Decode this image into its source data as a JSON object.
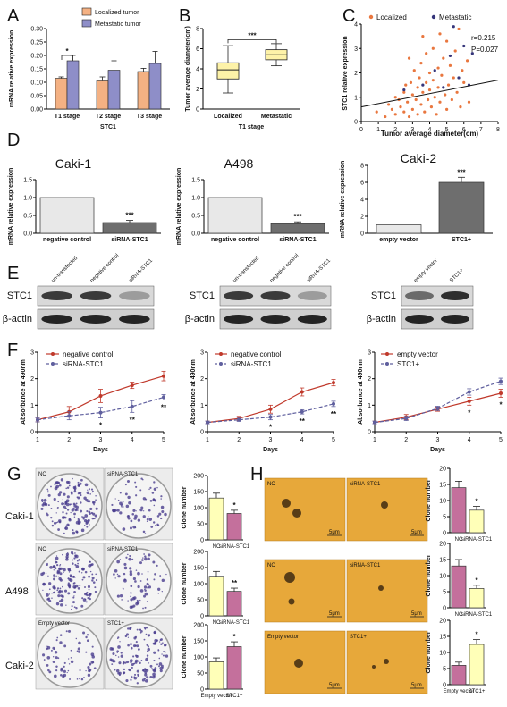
{
  "panels": {
    "A": "A",
    "B": "B",
    "C": "C",
    "D": "D",
    "E": "E",
    "F": "F",
    "G": "G",
    "H": "H"
  },
  "chart_data": [
    {
      "id": "A",
      "type": "bar",
      "categories": [
        "T1 stage",
        "T2 stage",
        "T3 stage"
      ],
      "series": [
        {
          "name": "Localized tumor",
          "color": "#f4b183",
          "values": [
            0.115,
            0.105,
            0.14
          ],
          "err": [
            0.005,
            0.015,
            0.012
          ]
        },
        {
          "name": "Metastatic tumor",
          "color": "#8e8ec8",
          "values": [
            0.18,
            0.145,
            0.17
          ],
          "err": [
            0.02,
            0.035,
            0.045
          ]
        }
      ],
      "xlabel": "STC1",
      "ylabel": "mRNA relative expression",
      "ylim": [
        0,
        0.3
      ],
      "yticks": [
        "0.00",
        "0.05",
        "0.10",
        "0.15",
        "0.20",
        "0.25",
        "0.30"
      ],
      "annotations": [
        {
          "text": "*",
          "category": 0
        }
      ]
    },
    {
      "id": "B",
      "type": "boxplot",
      "categories": [
        "Localized",
        "Metastatic"
      ],
      "boxes": [
        {
          "min": 1.6,
          "q1": 3.0,
          "median": 3.9,
          "q3": 4.6,
          "max": 6.3
        },
        {
          "min": 4.3,
          "q1": 4.9,
          "median": 5.4,
          "q3": 5.9,
          "max": 6.5
        }
      ],
      "color": "#fdf2a8",
      "xlabel": "T1 stage",
      "ylabel": "Tumor average diameter(cm)",
      "ylim": [
        0,
        8
      ],
      "yticks": [
        "0",
        "2",
        "4",
        "6",
        "8"
      ],
      "annotation": "***"
    },
    {
      "id": "C",
      "type": "scatter",
      "series": [
        {
          "name": "Localized",
          "color": "#e9773f",
          "points": [
            [
              0.9,
              0.4
            ],
            [
              1.4,
              0.2
            ],
            [
              1.6,
              0.7
            ],
            [
              1.8,
              0.5
            ],
            [
              2.0,
              0.3
            ],
            [
              2.0,
              1.0
            ],
            [
              2.2,
              0.9
            ],
            [
              2.3,
              0.6
            ],
            [
              2.5,
              1.2
            ],
            [
              2.5,
              0.4
            ],
            [
              2.6,
              1.5
            ],
            [
              2.7,
              0.8
            ],
            [
              2.8,
              0.2
            ],
            [
              2.9,
              1.6
            ],
            [
              3.0,
              1.1
            ],
            [
              3.0,
              0.5
            ],
            [
              3.1,
              2.1
            ],
            [
              3.2,
              0.9
            ],
            [
              3.3,
              1.4
            ],
            [
              3.3,
              0.3
            ],
            [
              3.4,
              1.8
            ],
            [
              3.5,
              0.7
            ],
            [
              3.5,
              2.4
            ],
            [
              3.6,
              1.2
            ],
            [
              3.7,
              0.4
            ],
            [
              3.8,
              1.6
            ],
            [
              3.8,
              2.8
            ],
            [
              3.9,
              0.9
            ],
            [
              4.0,
              1.3
            ],
            [
              4.0,
              2.0
            ],
            [
              4.1,
              0.6
            ],
            [
              4.2,
              1.7
            ],
            [
              4.2,
              3.0
            ],
            [
              4.3,
              1.0
            ],
            [
              4.4,
              0.3
            ],
            [
              4.5,
              2.2
            ],
            [
              4.5,
              1.4
            ],
            [
              4.6,
              0.8
            ],
            [
              4.7,
              1.9
            ],
            [
              4.8,
              2.6
            ],
            [
              4.9,
              1.1
            ],
            [
              5.0,
              0.5
            ],
            [
              5.0,
              3.3
            ],
            [
              5.1,
              1.5
            ],
            [
              5.2,
              2.3
            ],
            [
              5.3,
              0.9
            ],
            [
              5.4,
              1.8
            ],
            [
              5.5,
              2.9
            ],
            [
              5.6,
              1.2
            ],
            [
              5.7,
              3.8
            ],
            [
              5.8,
              0.6
            ],
            [
              5.9,
              2.1
            ],
            [
              6.0,
              1.6
            ],
            [
              6.2,
              2.5
            ],
            [
              6.3,
              0.8
            ],
            [
              3.6,
              3.5
            ],
            [
              2.8,
              2.6
            ],
            [
              4.6,
              3.6
            ]
          ]
        },
        {
          "name": "Metastatic",
          "color": "#35357a",
          "points": [
            [
              2.5,
              1.3
            ],
            [
              3.6,
              1.5
            ],
            [
              4.3,
              2.1
            ],
            [
              4.8,
              1.4
            ],
            [
              5.2,
              2.7
            ],
            [
              5.4,
              3.9
            ],
            [
              5.7,
              1.8
            ],
            [
              6.0,
              3.1
            ],
            [
              6.3,
              1.5
            ],
            [
              6.5,
              2.8
            ]
          ]
        }
      ],
      "fit": {
        "x0": 0,
        "y0": 0.6,
        "x1": 8,
        "y1": 1.7
      },
      "xlabel": "Tumor average diameter(cm)",
      "ylabel": "STC1 relative expression",
      "xlim": [
        0,
        8
      ],
      "ylim": [
        0,
        4
      ],
      "xticks": [
        "0",
        "1",
        "2",
        "3",
        "4",
        "5",
        "6",
        "7",
        "8"
      ],
      "yticks": [
        "0",
        "1",
        "2",
        "3",
        "4"
      ],
      "stats": [
        "r=0.215",
        "P=0.027"
      ]
    },
    {
      "id": "D1",
      "type": "bar",
      "title": "Caki-1",
      "categories": [
        "negative control",
        "siRNA-STC1"
      ],
      "values": [
        1.0,
        0.3
      ],
      "err": [
        0,
        0.06
      ],
      "colors": [
        "#e8e8e8",
        "#6e6e6e"
      ],
      "ylabel": "mRNA relative expression",
      "ylim": [
        0,
        1.5
      ],
      "yticks": [
        "0.0",
        "0.5",
        "1.0",
        "1.5"
      ],
      "annotation": "***"
    },
    {
      "id": "D2",
      "type": "bar",
      "title": "A498",
      "categories": [
        "negative control",
        "siRNA-STC1"
      ],
      "values": [
        1.0,
        0.27
      ],
      "err": [
        0,
        0.05
      ],
      "colors": [
        "#e8e8e8",
        "#6e6e6e"
      ],
      "ylabel": "mRNA relative expression",
      "ylim": [
        0,
        1.5
      ],
      "yticks": [
        "0.0",
        "0.5",
        "1.0",
        "1.5"
      ],
      "annotation": "***"
    },
    {
      "id": "D3",
      "type": "bar",
      "title": "Caki-2",
      "categories": [
        "empty vector",
        "STC1+"
      ],
      "values": [
        1.0,
        6.0
      ],
      "err": [
        0,
        0.6
      ],
      "colors": [
        "#e8e8e8",
        "#6e6e6e"
      ],
      "ylabel": "mRNA relative expression",
      "ylim": [
        0,
        8
      ],
      "yticks": [
        "0",
        "2",
        "4",
        "6",
        "8"
      ],
      "annotation": "***"
    },
    {
      "id": "F1",
      "type": "line",
      "series": [
        {
          "name": "negative control",
          "color": "#c0392b",
          "dash": false,
          "values": [
            0.45,
            0.75,
            1.35,
            1.75,
            2.1
          ],
          "err": [
            0.08,
            0.2,
            0.25,
            0.12,
            0.18
          ]
        },
        {
          "name": "siRNA-STC1",
          "color": "#5f5f9e",
          "dash": true,
          "values": [
            0.45,
            0.6,
            0.72,
            0.95,
            1.3
          ],
          "err": [
            0.08,
            0.15,
            0.2,
            0.22,
            0.1
          ]
        }
      ],
      "x": [
        "1",
        "2",
        "3",
        "4",
        "5"
      ],
      "xlabel": "Days",
      "ylabel": "Absorbance at 490nm",
      "ylim": [
        0,
        3
      ],
      "yticks": [
        "0",
        "1",
        "2",
        "3"
      ],
      "annotations": [
        {
          "text": "*",
          "xi": 2
        },
        {
          "text": "**",
          "xi": 3
        },
        {
          "text": "**",
          "xi": 4
        }
      ]
    },
    {
      "id": "F2",
      "type": "line",
      "series": [
        {
          "name": "negative control",
          "color": "#c0392b",
          "dash": false,
          "values": [
            0.35,
            0.5,
            0.85,
            1.5,
            1.85
          ],
          "err": [
            0.05,
            0.08,
            0.15,
            0.15,
            0.12
          ]
        },
        {
          "name": "siRNA-STC1",
          "color": "#5f5f9e",
          "dash": true,
          "values": [
            0.35,
            0.45,
            0.55,
            0.75,
            1.05
          ],
          "err": [
            0.05,
            0.06,
            0.1,
            0.08,
            0.1
          ]
        }
      ],
      "x": [
        "1",
        "2",
        "3",
        "4",
        "5"
      ],
      "xlabel": "Days",
      "ylabel": "Absorbance at 490nm",
      "ylim": [
        0,
        3
      ],
      "yticks": [
        "0",
        "1",
        "2",
        "3"
      ],
      "annotations": [
        {
          "text": "*",
          "xi": 2
        },
        {
          "text": "**",
          "xi": 3
        },
        {
          "text": "**",
          "xi": 4
        }
      ]
    },
    {
      "id": "F3",
      "type": "line",
      "series": [
        {
          "name": "empty vector",
          "color": "#c0392b",
          "dash": false,
          "values": [
            0.35,
            0.55,
            0.85,
            1.15,
            1.45
          ],
          "err": [
            0.05,
            0.1,
            0.08,
            0.15,
            0.15
          ]
        },
        {
          "name": "STC1+",
          "color": "#5f5f9e",
          "dash": true,
          "values": [
            0.35,
            0.5,
            0.88,
            1.5,
            1.9
          ],
          "err": [
            0.05,
            0.08,
            0.08,
            0.12,
            0.12
          ]
        }
      ],
      "x": [
        "1",
        "2",
        "3",
        "4",
        "5"
      ],
      "xlabel": "Days",
      "ylabel": "Absorbance at 490nm",
      "ylim": [
        0,
        3
      ],
      "yticks": [
        "0",
        "1",
        "2",
        "3"
      ],
      "annotations": [
        {
          "text": "*",
          "xi": 3
        },
        {
          "text": "*",
          "xi": 4
        }
      ]
    },
    {
      "id": "G1",
      "type": "bar",
      "categories": [
        "NC",
        "siRNA-STC1"
      ],
      "values": [
        130,
        82
      ],
      "err": [
        15,
        10
      ],
      "colors": [
        "#ffffb8",
        "#c4709c"
      ],
      "ylabel": "Clone number",
      "ylim": [
        0,
        200
      ],
      "yticks": [
        "0",
        "50",
        "100",
        "150",
        "200"
      ],
      "annotation": "*"
    },
    {
      "id": "G2",
      "type": "bar",
      "categories": [
        "NC",
        "siRNA-STC1"
      ],
      "values": [
        123,
        76
      ],
      "err": [
        15,
        10
      ],
      "colors": [
        "#ffffb8",
        "#c4709c"
      ],
      "ylabel": "Clone number",
      "ylim": [
        0,
        200
      ],
      "yticks": [
        "0",
        "50",
        "100",
        "150",
        "200"
      ],
      "annotation": "**"
    },
    {
      "id": "G3",
      "type": "bar",
      "categories": [
        "Empty vector",
        "STC1+"
      ],
      "values": [
        85,
        132
      ],
      "err": [
        12,
        15
      ],
      "colors": [
        "#ffffb8",
        "#c4709c"
      ],
      "ylabel": "Clone number",
      "ylim": [
        0,
        200
      ],
      "yticks": [
        "0",
        "50",
        "100",
        "150",
        "200"
      ],
      "annotation": "*"
    },
    {
      "id": "H1",
      "type": "bar",
      "categories": [
        "NC",
        "siRNA-STC1"
      ],
      "values": [
        14,
        7
      ],
      "err": [
        2,
        1.2
      ],
      "colors": [
        "#c4709c",
        "#ffffb8"
      ],
      "ylabel": "Clone number",
      "ylim": [
        0,
        20
      ],
      "yticks": [
        "0",
        "5",
        "10",
        "15",
        "20"
      ],
      "annotation": "*"
    },
    {
      "id": "H2",
      "type": "bar",
      "categories": [
        "NC",
        "siRNA-STC1"
      ],
      "values": [
        13,
        6
      ],
      "err": [
        2,
        1
      ],
      "colors": [
        "#c4709c",
        "#ffffb8"
      ],
      "ylabel": "Clone number",
      "ylim": [
        0,
        20
      ],
      "yticks": [
        "0",
        "5",
        "10",
        "15",
        "20"
      ],
      "annotation": "*"
    },
    {
      "id": "H3",
      "type": "bar",
      "categories": [
        "Empty vector",
        "STC1+"
      ],
      "values": [
        6,
        12.5
      ],
      "err": [
        1,
        1.5
      ],
      "colors": [
        "#c4709c",
        "#ffffb8"
      ],
      "ylabel": "Clone number",
      "ylim": [
        0,
        20
      ],
      "yticks": [
        "0",
        "5",
        "10",
        "15",
        "20"
      ],
      "annotation": "*"
    }
  ],
  "blots": [
    {
      "lanes": [
        "un-transfected",
        "negative control",
        "siRNA-STC1"
      ],
      "rows": [
        "STC1",
        "β-actin"
      ]
    },
    {
      "lanes": [
        "un-transfected",
        "negative control",
        "siRNA-STC1"
      ],
      "rows": [
        "STC1",
        "β-actin"
      ]
    },
    {
      "lanes": [
        "empty vector",
        "STC1+"
      ],
      "rows": [
        "STC1",
        "β-actin"
      ]
    }
  ],
  "g_rows": [
    "Caki-1",
    "A498",
    "Caki-2"
  ],
  "g_dish_labels": [
    [
      "NC",
      "siRNA-STC1"
    ],
    [
      "NC",
      "siRNA-STC1"
    ],
    [
      "Empty vector",
      "STC1+"
    ]
  ],
  "h_labels": [
    [
      "NC",
      "siRNA-STC1"
    ],
    [
      "NC",
      "siRNA-STC1"
    ],
    [
      "Empty vector",
      "STC1+"
    ]
  ],
  "scale_bar": "5μm"
}
